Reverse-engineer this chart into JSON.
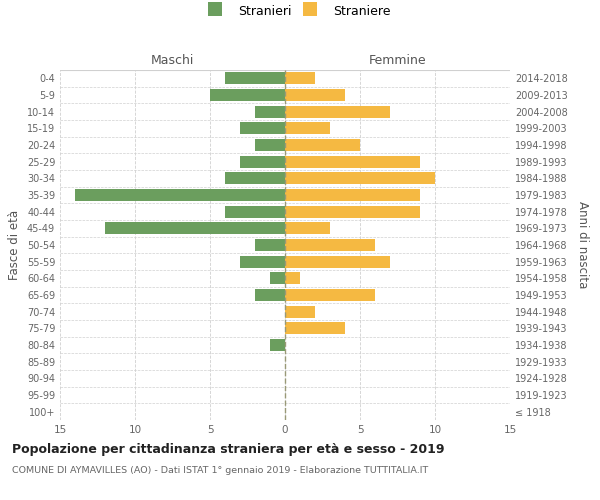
{
  "age_groups": [
    "100+",
    "95-99",
    "90-94",
    "85-89",
    "80-84",
    "75-79",
    "70-74",
    "65-69",
    "60-64",
    "55-59",
    "50-54",
    "45-49",
    "40-44",
    "35-39",
    "30-34",
    "25-29",
    "20-24",
    "15-19",
    "10-14",
    "5-9",
    "0-4"
  ],
  "birth_years": [
    "≤ 1918",
    "1919-1923",
    "1924-1928",
    "1929-1933",
    "1934-1938",
    "1939-1943",
    "1944-1948",
    "1949-1953",
    "1954-1958",
    "1959-1963",
    "1964-1968",
    "1969-1973",
    "1974-1978",
    "1979-1983",
    "1984-1988",
    "1989-1993",
    "1994-1998",
    "1999-2003",
    "2004-2008",
    "2009-2013",
    "2014-2018"
  ],
  "maschi": [
    0,
    0,
    0,
    0,
    1,
    0,
    0,
    2,
    1,
    3,
    2,
    12,
    4,
    14,
    4,
    3,
    2,
    3,
    2,
    5,
    4
  ],
  "femmine": [
    0,
    0,
    0,
    0,
    0,
    4,
    2,
    6,
    1,
    7,
    6,
    3,
    9,
    9,
    10,
    9,
    5,
    3,
    7,
    4,
    2
  ],
  "maschi_color": "#6b9e5e",
  "femmine_color": "#f5b942",
  "title": "Popolazione per cittadinanza straniera per età e sesso - 2019",
  "subtitle": "COMUNE DI AYMAVILLES (AO) - Dati ISTAT 1° gennaio 2019 - Elaborazione TUTTITALIA.IT",
  "ylabel_left": "Fasce di età",
  "ylabel_right": "Anni di nascita",
  "xlabel_maschi": "Maschi",
  "xlabel_femmine": "Femmine",
  "legend_stranieri": "Stranieri",
  "legend_straniere": "Straniere",
  "xlim": 15,
  "background_color": "#ffffff",
  "grid_color": "#d0d0d0"
}
